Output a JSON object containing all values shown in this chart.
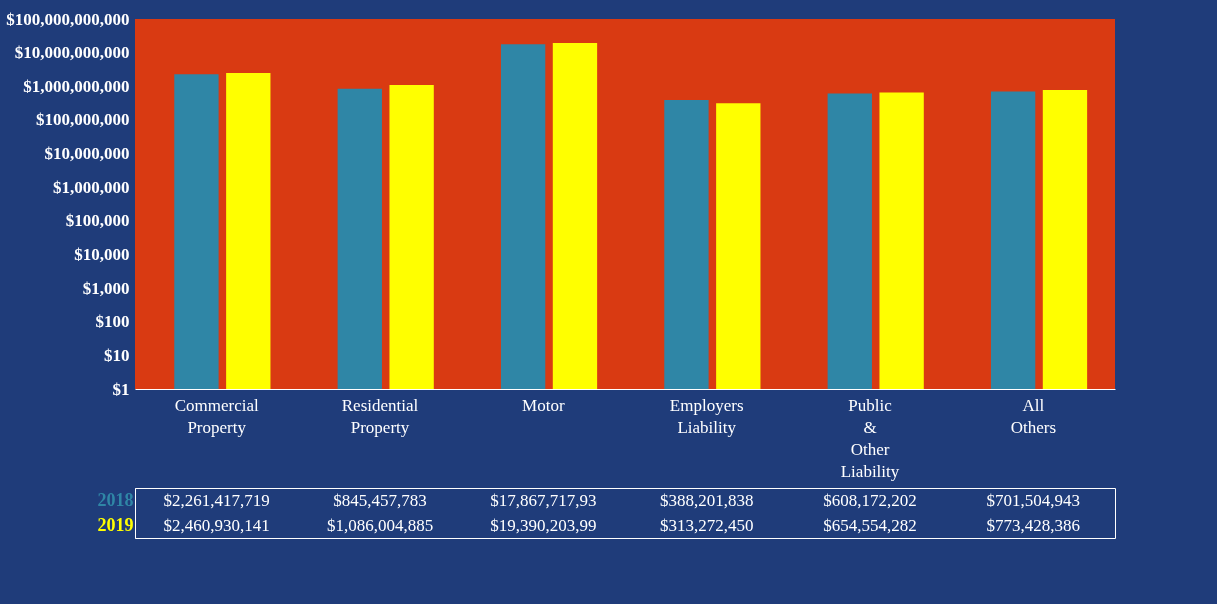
{
  "chart_data": {
    "type": "bar",
    "categories": [
      "Commercial Property",
      "Residential Property",
      "Motor",
      "Employers Liability",
      "Public & Other Liability",
      "All Others"
    ],
    "series": [
      {
        "name": "2018",
        "color": "#2f86a6",
        "values": [
          2261417719,
          845457783,
          17867717930,
          388201838,
          608172202,
          701504943
        ],
        "value_labels": [
          "$2,261,417,719",
          "$845,457,783",
          "$17,867,717,93",
          "$388,201,838",
          "$608,172,202",
          "$701,504,943"
        ]
      },
      {
        "name": "2019",
        "color": "#ffff00",
        "values": [
          2460930141,
          1086004885,
          19390203990,
          313272450,
          654554282,
          773428386
        ],
        "value_labels": [
          "$2,460,930,141",
          "$1,086,004,885",
          "$19,390,203,99",
          "$313,272,450",
          "$654,554,282",
          "$773,428,386"
        ]
      }
    ],
    "log": true,
    "ylim": [
      1,
      100000000000
    ],
    "yticks": [
      {
        "value": 1,
        "label": "$1"
      },
      {
        "value": 10,
        "label": "$10"
      },
      {
        "value": 100,
        "label": "$100"
      },
      {
        "value": 1000,
        "label": "$1,000"
      },
      {
        "value": 10000,
        "label": "$10,000"
      },
      {
        "value": 100000,
        "label": "$100,000"
      },
      {
        "value": 1000000,
        "label": "$1,000,000"
      },
      {
        "value": 10000000,
        "label": "$10,000,000"
      },
      {
        "value": 100000000,
        "label": "$100,000,000"
      },
      {
        "value": 1000000000,
        "label": "$1,000,000,000"
      },
      {
        "value": 10000000000,
        "label": "$10,000,000,000"
      },
      {
        "value": 100000000000,
        "label": "$100,000,000,000"
      }
    ],
    "grid": false,
    "legend": false
  }
}
